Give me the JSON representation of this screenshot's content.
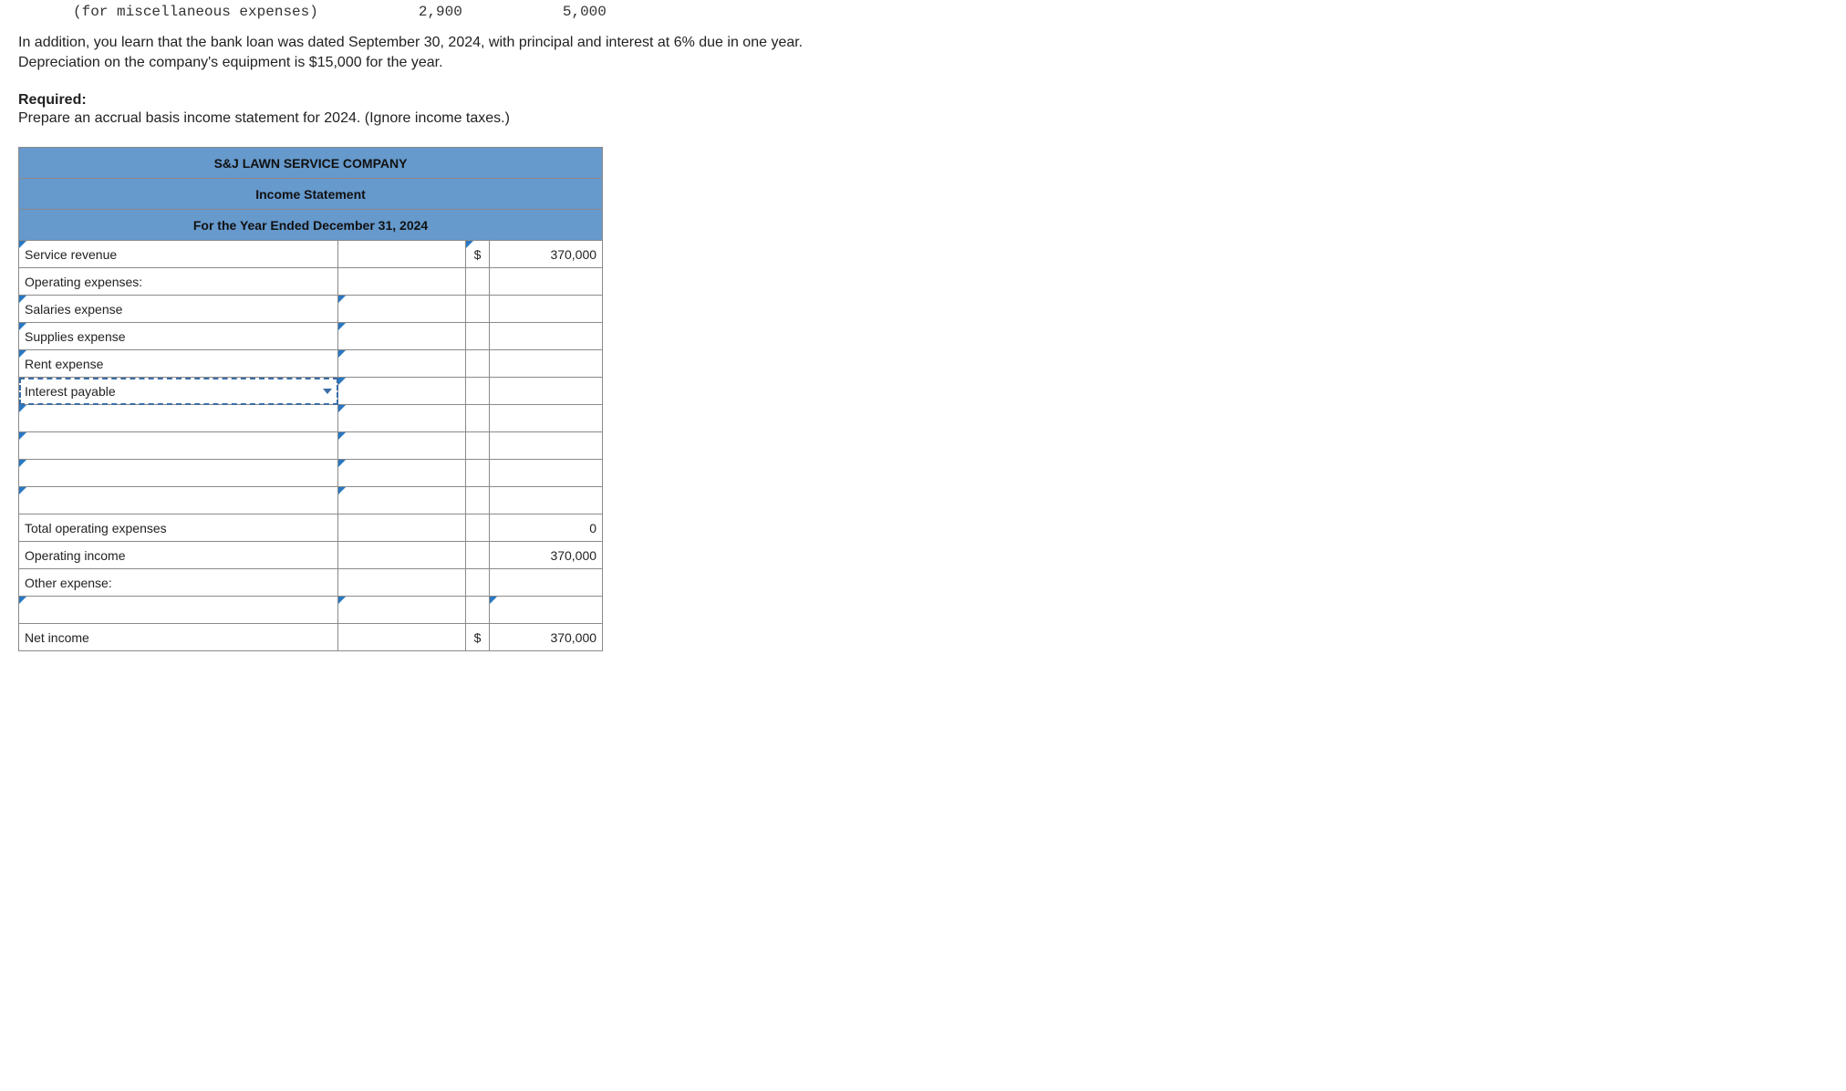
{
  "cutoff": {
    "label": "(for miscellaneous expenses)",
    "v1": "2,900",
    "v2": "5,000"
  },
  "intro": {
    "line1": "In addition, you learn that the bank loan was dated September 30, 2024, with principal and interest at 6% due in one year.",
    "line2": "Depreciation on the company's equipment is $15,000 for the year."
  },
  "required": {
    "label": "Required:",
    "text": "Prepare an accrual basis income statement for 2024. (Ignore income taxes.)"
  },
  "statement": {
    "company": "S&J LAWN SERVICE COMPANY",
    "title": "Income Statement",
    "period": "For the Year Ended December 31, 2024",
    "rows": {
      "service_revenue": {
        "label": "Service revenue",
        "sym": "$",
        "val": "370,000"
      },
      "operating_expenses_header": {
        "label": "Operating expenses:"
      },
      "salaries": {
        "label": "Salaries expense"
      },
      "supplies": {
        "label": "Supplies expense"
      },
      "rent": {
        "label": "Rent expense"
      },
      "interest_payable": {
        "label": "Interest payable"
      },
      "total_opex": {
        "label": "Total operating expenses",
        "val": "0"
      },
      "operating_income": {
        "label": "Operating income",
        "val": "370,000"
      },
      "other_expense_header": {
        "label": "Other expense:"
      },
      "net_income": {
        "label": "Net income",
        "sym": "$",
        "val": "370,000"
      }
    }
  },
  "colors": {
    "header_bg": "#6699cc",
    "border": "#8a8a8a",
    "tick": "#2a78c2"
  }
}
